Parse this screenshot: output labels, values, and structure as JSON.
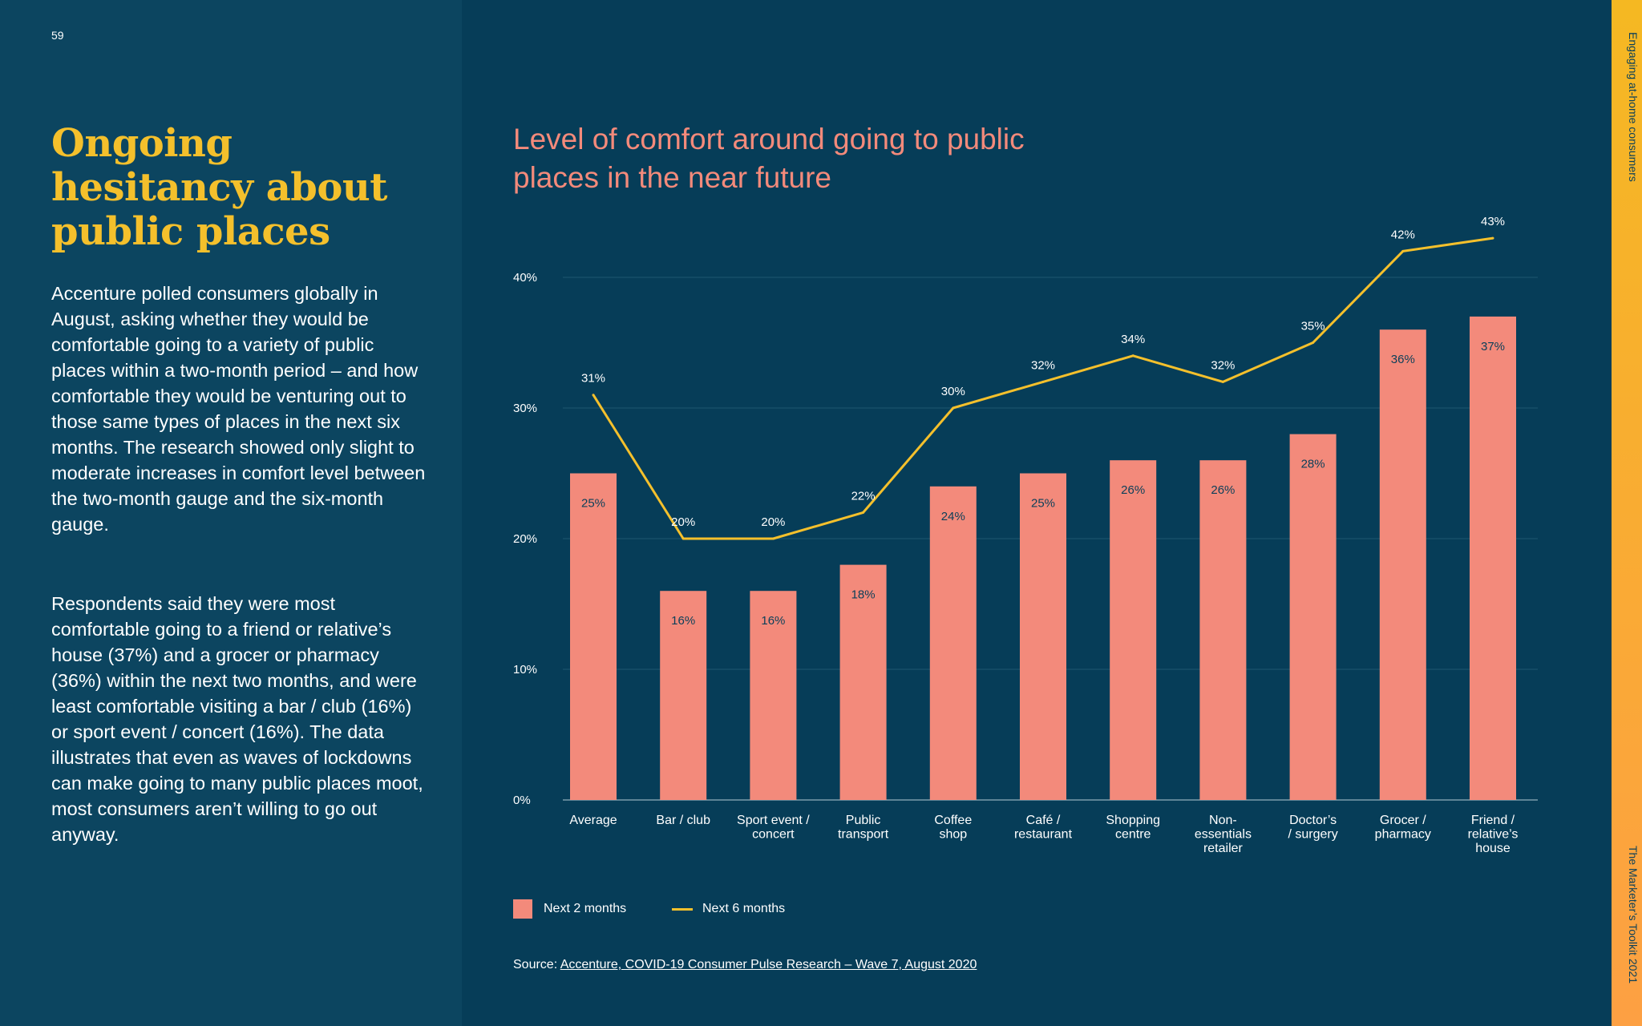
{
  "page": {
    "number": "59",
    "headline": "Ongoing hesitancy about public places",
    "paragraph_1": "Accenture polled consumers globally in August, asking whether they would be comfortable going to a variety of public places within a two-month period – and how comfortable they would be venturing out to those same types of places in the next six months. The research showed only slight to moderate increases in comfort level between the two-month gauge and the six-month gauge.",
    "paragraph_2": "Respondents said they were most comfortable going to a friend or relative’s house (37%) and a grocer or pharmacy (36%) within the next two months, and were least comfortable visiting a bar / club (16%) or sport event / concert (16%). The data illustrates that even as waves of lockdowns can make going to many public places  moot, most consumers aren’t willing  to go out anyway.",
    "side_top": "Engaging at-home consumers",
    "side_bottom": "The Marketer’s Toolkit 2021"
  },
  "source": {
    "prefix": "Source: ",
    "link_text": "Accenture, COVID-19 Consumer Pulse Research – Wave 7, August 2020"
  },
  "colors": {
    "background": "#063d58",
    "left_panel": "#0c4560",
    "headline": "#f4c02c",
    "bar": "#f38a7b",
    "line": "#f4c02c",
    "accent_strip": "#f5b822"
  },
  "chart_data": {
    "type": "bar",
    "title": "Level of comfort around going to public places in the near future",
    "xlabel": "",
    "ylabel": "",
    "ylim": [
      0,
      40
    ],
    "yticks": [
      "0%",
      "10%",
      "20%",
      "30%",
      "40%"
    ],
    "grid": true,
    "legend_position": "bottom-left",
    "categories": [
      [
        "Average"
      ],
      [
        "Bar / club"
      ],
      [
        "Sport event /",
        "concert"
      ],
      [
        "Public",
        "transport"
      ],
      [
        "Coffee",
        "shop"
      ],
      [
        "Café /",
        "restaurant"
      ],
      [
        "Shopping",
        "centre"
      ],
      [
        "Non-",
        "essentials",
        "retailer"
      ],
      [
        "Doctor’s",
        "/ surgery"
      ],
      [
        "Grocer /",
        "pharmacy"
      ],
      [
        "Friend /",
        "relative’s",
        "house"
      ]
    ],
    "series": [
      {
        "name": "Next 2 months",
        "kind": "bar",
        "values": [
          25,
          16,
          16,
          18,
          24,
          25,
          26,
          26,
          28,
          36,
          37
        ],
        "labels": [
          "25%",
          "16%",
          "16%",
          "18%",
          "24%",
          "25%",
          "26%",
          "26%",
          "28%",
          "36%",
          "37%"
        ]
      },
      {
        "name": "Next 6 months",
        "kind": "line",
        "values": [
          31,
          20,
          20,
          22,
          30,
          32,
          34,
          32,
          35,
          42,
          43
        ],
        "labels": [
          "31%",
          "20%",
          "20%",
          "22%",
          "30%",
          "32%",
          "34%",
          "32%",
          "35%",
          "42%",
          "43%"
        ]
      }
    ]
  }
}
